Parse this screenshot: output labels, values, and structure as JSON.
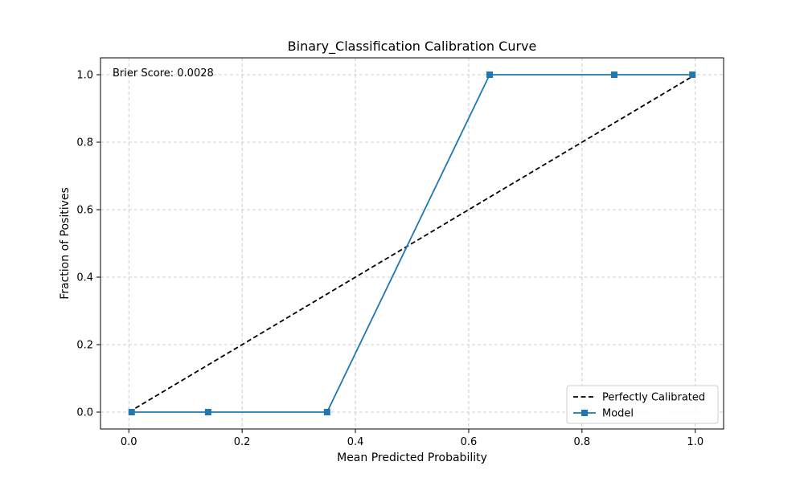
{
  "chart_data": {
    "type": "line",
    "title": "Binary_Classification Calibration Curve",
    "xlabel": "Mean Predicted Probability",
    "ylabel": "Fraction of Positives",
    "xlim": [
      -0.05,
      1.05
    ],
    "ylim": [
      -0.05,
      1.05
    ],
    "xticks": [
      "0.0",
      "0.2",
      "0.4",
      "0.6",
      "0.8",
      "1.0"
    ],
    "yticks": [
      "0.0",
      "0.2",
      "0.4",
      "0.6",
      "0.8",
      "1.0"
    ],
    "grid": true,
    "legend_position": "bottom-right",
    "annotation": "Brier Score: 0.0028",
    "series": [
      {
        "name": "Perfectly Calibrated",
        "color": "#000000",
        "style": "dashed",
        "x": [
          0.0,
          1.0
        ],
        "y": [
          0.0,
          1.0
        ]
      },
      {
        "name": "Model",
        "color": "#1f77b4",
        "style": "solid",
        "marker": "square",
        "x": [
          0.005,
          0.14,
          0.35,
          0.637,
          0.857,
          0.995
        ],
        "y": [
          0.0,
          0.0,
          0.0,
          1.0,
          1.0,
          1.0
        ]
      }
    ]
  }
}
